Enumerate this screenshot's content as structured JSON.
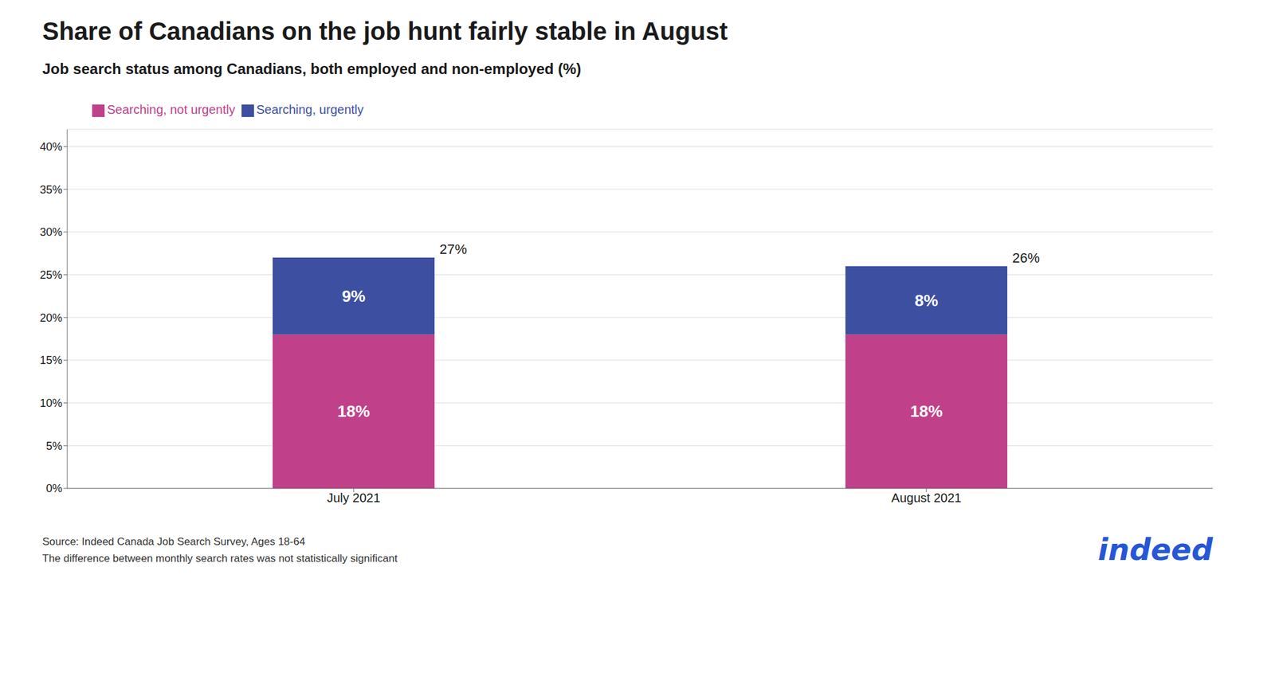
{
  "chart_data": {
    "type": "bar",
    "stacked": true,
    "title": "Share of Canadians on the job hunt fairly stable in August",
    "subtitle": "Job search status among Canadians, both employed and non-employed (%)",
    "categories": [
      "July 2021",
      "August 2021"
    ],
    "series": [
      {
        "name": "Searching, not urgently",
        "color": "#c0408a",
        "values": [
          18,
          18
        ],
        "value_labels": [
          "18%",
          "18%"
        ]
      },
      {
        "name": "Searching, urgently",
        "color": "#3d4fa0",
        "values": [
          9,
          8
        ],
        "value_labels": [
          "9%",
          "8%"
        ]
      }
    ],
    "totals": [
      27,
      26
    ],
    "total_labels": [
      "27%",
      "26%"
    ],
    "data_labels": true,
    "ylim": [
      0,
      42
    ],
    "yticks": [
      {
        "value": 0,
        "label": "0%"
      },
      {
        "value": 5,
        "label": "5%"
      },
      {
        "value": 10,
        "label": "10%"
      },
      {
        "value": 15,
        "label": "15%"
      },
      {
        "value": 20,
        "label": "20%"
      },
      {
        "value": 25,
        "label": "25%"
      },
      {
        "value": 30,
        "label": "30%"
      },
      {
        "value": 35,
        "label": "35%"
      },
      {
        "value": 40,
        "label": "40%"
      }
    ],
    "grid": true,
    "legend": "upper left",
    "source": [
      "Source: Indeed Canada Job Search Survey, Ages 18-64",
      "The difference between monthly search rates was not statistically significant"
    ],
    "logo": "indeed",
    "logo_color": "#2557d6"
  }
}
